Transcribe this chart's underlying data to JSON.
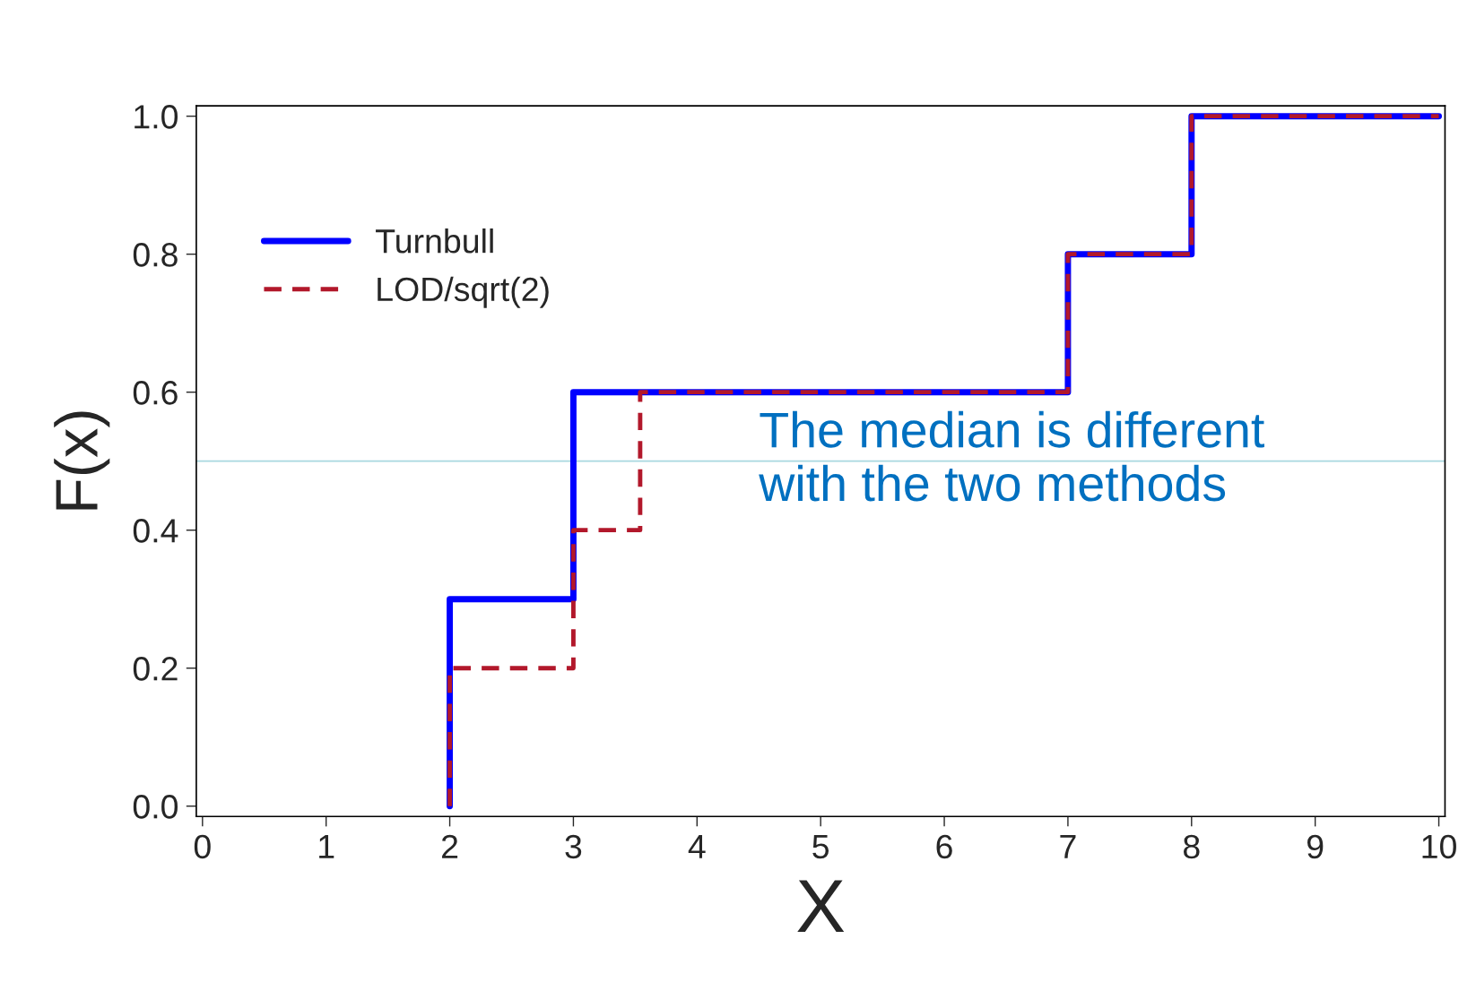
{
  "chart_data": {
    "type": "step",
    "xlabel": "X",
    "ylabel": "F(x)",
    "xlim": [
      -0.05,
      10.05
    ],
    "ylim": [
      -0.015,
      1.015
    ],
    "xticks": [
      0,
      1,
      2,
      3,
      4,
      5,
      6,
      7,
      8,
      9,
      10
    ],
    "yticks": [
      {
        "value": 0,
        "label": "0.0"
      },
      {
        "value": 0.2,
        "label": "0.2"
      },
      {
        "value": 0.4,
        "label": "0.4"
      },
      {
        "value": 0.6,
        "label": "0.6"
      },
      {
        "value": 0.8,
        "label": "0.8"
      },
      {
        "value": 1,
        "label": "1.0"
      }
    ],
    "series": [
      {
        "name": "Turnbull",
        "color": "#0000ff",
        "line_style": "solid",
        "x": [
          2,
          2,
          3,
          7,
          8,
          10
        ],
        "values": [
          0,
          0.3,
          0.6,
          0.8,
          1.0,
          1.0
        ]
      },
      {
        "name": "LOD/sqrt(2)",
        "color": "#b2182b",
        "line_style": "dashed",
        "x": [
          2,
          2,
          3,
          3.54,
          7,
          8,
          10
        ],
        "values": [
          0,
          0.2,
          0.4,
          0.6,
          0.8,
          1.0,
          1.0
        ]
      }
    ],
    "ref_lines": [
      {
        "axis": "y",
        "value": 0.5,
        "color": "#a8d8e0"
      }
    ],
    "annotations": [
      {
        "text": "The median is different\nwith the two methods",
        "x": 4.5,
        "y": 0.5
      }
    ],
    "legend": "top left",
    "grid": false
  }
}
